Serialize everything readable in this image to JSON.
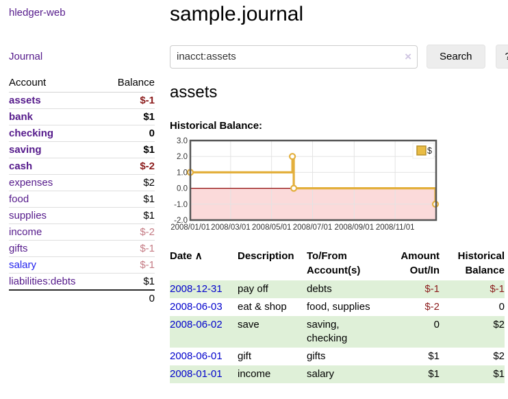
{
  "app": {
    "title": "hledger-web"
  },
  "sidebar": {
    "journal_label": "Journal",
    "accounts_table": {
      "headers": {
        "account": "Account",
        "balance": "Balance"
      },
      "rows": [
        {
          "name": "assets",
          "depth": 1,
          "bold": true,
          "balance": "$-1"
        },
        {
          "name": "bank",
          "depth": 2,
          "bold": true,
          "balance": "$1"
        },
        {
          "name": "checking",
          "depth": 3,
          "bold": true,
          "balance": "0"
        },
        {
          "name": "saving",
          "depth": 3,
          "bold": true,
          "balance": "$1"
        },
        {
          "name": "cash",
          "depth": 2,
          "bold": true,
          "balance": "$-2"
        },
        {
          "name": "expenses",
          "depth": 1,
          "bold": false,
          "balance": "$2"
        },
        {
          "name": "food",
          "depth": 2,
          "bold": false,
          "balance": "$1"
        },
        {
          "name": "supplies",
          "depth": 2,
          "bold": false,
          "balance": "$1"
        },
        {
          "name": "income",
          "depth": 1,
          "bold": false,
          "balance": "$-2"
        },
        {
          "name": "gifts",
          "depth": 2,
          "bold": false,
          "balance": "$-1"
        },
        {
          "name": "salary",
          "depth": 2,
          "bold": false,
          "balance": "$-1",
          "link_color": "blue"
        },
        {
          "name": "liabilities:debts",
          "depth": 1,
          "bold": false,
          "balance": "$1"
        }
      ],
      "total": "0"
    }
  },
  "main": {
    "title": "sample.journal",
    "search": {
      "value": "inacct:assets",
      "clear_icon": "×",
      "button_label": "Search",
      "help_label": "?"
    },
    "account_heading": "assets",
    "chart_label": "Historical Balance:"
  },
  "chart_data": {
    "type": "line",
    "step": true,
    "series": [
      {
        "name": "$",
        "color": "#E3AF3C",
        "points": [
          {
            "date": "2008-01-01",
            "value": 1.0
          },
          {
            "date": "2008-06-01",
            "value": 2.0
          },
          {
            "date": "2008-06-03",
            "value": 0.0
          },
          {
            "date": "2008-12-31",
            "value": -1.0
          }
        ]
      }
    ],
    "x_domain": [
      "2008-01-01",
      "2009-01-01"
    ],
    "x_ticks": [
      "2008/01/01",
      "2008/03/01",
      "2008/05/01",
      "2008/07/01",
      "2008/09/01",
      "2008/11/01"
    ],
    "y_ticks": [
      "3.0",
      "2.0",
      "1.0",
      "0.0",
      "-1.0",
      "-2.0"
    ],
    "ylim": [
      -2,
      3
    ],
    "legend": {
      "label": "$",
      "swatch_color": "#E9BC44",
      "position": "top-right"
    },
    "grid": true,
    "below_zero_fill": "#FBDADA",
    "zero_line_color": "#8f0e0e",
    "grid_color": "#e3e3e3",
    "border_color": "#555555"
  },
  "register_table": {
    "headers": {
      "date": "Date",
      "sort_icon": "∧",
      "description": "Description",
      "accounts": "To/From Account(s)",
      "amount": "Amount Out/In",
      "balance": "Historical Balance"
    },
    "rows": [
      {
        "date": "2008-12-31",
        "description": "pay off",
        "accounts": "debts",
        "amount": "$-1",
        "balance": "$-1"
      },
      {
        "date": "2008-06-03",
        "description": "eat & shop",
        "accounts": "food, supplies",
        "amount": "$-2",
        "balance": "0"
      },
      {
        "date": "2008-06-02",
        "description": "save",
        "accounts": "saving, checking",
        "amount": "0",
        "balance": "$2"
      },
      {
        "date": "2008-06-01",
        "description": "gift",
        "accounts": "gifts",
        "amount": "$1",
        "balance": "$2"
      },
      {
        "date": "2008-01-01",
        "description": "income",
        "accounts": "salary",
        "amount": "$1",
        "balance": "$1"
      }
    ]
  },
  "colors": {
    "link_purple": "#551A8B",
    "link_blue": "#0000cc",
    "negative_strong": "#8b1b1b",
    "negative_dim": "#c57b84",
    "row_stripe_green": "#dff0d8"
  }
}
